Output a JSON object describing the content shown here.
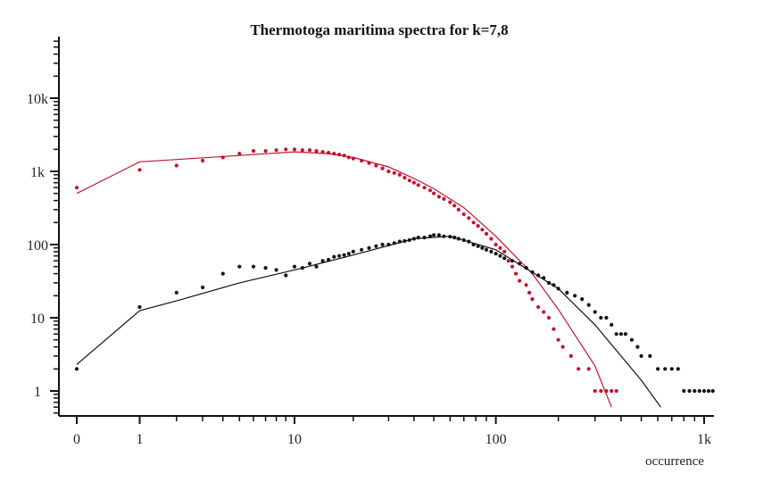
{
  "chart_data": {
    "type": "scatter",
    "title": "Thermotoga maritima spectra for k=7,8",
    "xlabel": "occurrence",
    "ylabel": "",
    "x_scale": "log(1+x)",
    "y_scale": "log",
    "xlim": [
      0,
      1200
    ],
    "ylim": [
      0.55,
      70000
    ],
    "x_tick_labels": [
      {
        "value": 0,
        "label": "0"
      },
      {
        "value": 1,
        "label": "1"
      },
      {
        "value": 10,
        "label": "10"
      },
      {
        "value": 100,
        "label": "100"
      },
      {
        "value": 1000,
        "label": "1k"
      }
    ],
    "y_tick_labels": [
      {
        "value": 1,
        "label": "1"
      },
      {
        "value": 10,
        "label": "10"
      },
      {
        "value": 100,
        "label": "100"
      },
      {
        "value": 1000,
        "label": "1k"
      },
      {
        "value": 10000,
        "label": "10k"
      }
    ],
    "grid": false,
    "legend": "none",
    "series": [
      {
        "color": "#c8102e",
        "points": [
          [
            0,
            600
          ],
          [
            1,
            1050
          ],
          [
            2,
            1200
          ],
          [
            3,
            1400
          ],
          [
            4,
            1550
          ],
          [
            5,
            1750
          ],
          [
            6,
            1900
          ],
          [
            7,
            1900
          ],
          [
            8,
            1950
          ],
          [
            9,
            2000
          ],
          [
            10,
            2000
          ],
          [
            11,
            1950
          ],
          [
            12,
            1950
          ],
          [
            13,
            1900
          ],
          [
            14,
            1850
          ],
          [
            15,
            1800
          ],
          [
            16,
            1750
          ],
          [
            17,
            1700
          ],
          [
            18,
            1650
          ],
          [
            19,
            1550
          ],
          [
            20,
            1500
          ],
          [
            22,
            1400
          ],
          [
            24,
            1300
          ],
          [
            26,
            1200
          ],
          [
            28,
            1100
          ],
          [
            30,
            1000
          ],
          [
            32,
            950
          ],
          [
            34,
            900
          ],
          [
            36,
            820
          ],
          [
            38,
            750
          ],
          [
            40,
            700
          ],
          [
            42,
            650
          ],
          [
            45,
            600
          ],
          [
            48,
            550
          ],
          [
            50,
            500
          ],
          [
            53,
            450
          ],
          [
            56,
            420
          ],
          [
            60,
            380
          ],
          [
            63,
            340
          ],
          [
            66,
            300
          ],
          [
            70,
            260
          ],
          [
            74,
            230
          ],
          [
            78,
            200
          ],
          [
            82,
            180
          ],
          [
            86,
            160
          ],
          [
            90,
            140
          ],
          [
            95,
            120
          ],
          [
            100,
            100
          ],
          [
            105,
            90
          ],
          [
            110,
            80
          ],
          [
            115,
            60
          ],
          [
            120,
            50
          ],
          [
            125,
            40
          ],
          [
            130,
            32
          ],
          [
            140,
            28
          ],
          [
            145,
            22
          ],
          [
            150,
            18
          ],
          [
            160,
            14
          ],
          [
            170,
            12
          ],
          [
            180,
            10
          ],
          [
            190,
            7
          ],
          [
            200,
            5
          ],
          [
            210,
            4
          ],
          [
            230,
            3
          ],
          [
            250,
            2
          ],
          [
            280,
            2
          ],
          [
            300,
            1
          ],
          [
            320,
            1
          ],
          [
            340,
            1
          ],
          [
            360,
            1
          ],
          [
            380,
            1
          ]
        ],
        "fit": [
          [
            0,
            500
          ],
          [
            1,
            1350
          ],
          [
            5,
            1650
          ],
          [
            10,
            1850
          ],
          [
            15,
            1750
          ],
          [
            20,
            1550
          ],
          [
            30,
            1150
          ],
          [
            40,
            800
          ],
          [
            50,
            580
          ],
          [
            70,
            320
          ],
          [
            100,
            130
          ],
          [
            150,
            40
          ],
          [
            200,
            13
          ],
          [
            300,
            2.2
          ],
          [
            360,
            0.6
          ]
        ]
      },
      {
        "color": "#111111",
        "points": [
          [
            0,
            2
          ],
          [
            1,
            14
          ],
          [
            2,
            22
          ],
          [
            3,
            26
          ],
          [
            4,
            40
          ],
          [
            5,
            50
          ],
          [
            6,
            50
          ],
          [
            7,
            48
          ],
          [
            8,
            45
          ],
          [
            9,
            38
          ],
          [
            10,
            50
          ],
          [
            11,
            48
          ],
          [
            12,
            55
          ],
          [
            13,
            50
          ],
          [
            14,
            60
          ],
          [
            15,
            62
          ],
          [
            16,
            68
          ],
          [
            17,
            70
          ],
          [
            18,
            72
          ],
          [
            19,
            75
          ],
          [
            20,
            80
          ],
          [
            22,
            85
          ],
          [
            24,
            90
          ],
          [
            26,
            95
          ],
          [
            28,
            100
          ],
          [
            30,
            100
          ],
          [
            32,
            105
          ],
          [
            34,
            110
          ],
          [
            36,
            112
          ],
          [
            38,
            115
          ],
          [
            40,
            120
          ],
          [
            42,
            125
          ],
          [
            45,
            125
          ],
          [
            48,
            130
          ],
          [
            50,
            135
          ],
          [
            53,
            135
          ],
          [
            56,
            130
          ],
          [
            60,
            128
          ],
          [
            63,
            125
          ],
          [
            66,
            120
          ],
          [
            70,
            115
          ],
          [
            74,
            110
          ],
          [
            78,
            100
          ],
          [
            82,
            95
          ],
          [
            86,
            90
          ],
          [
            90,
            85
          ],
          [
            95,
            80
          ],
          [
            100,
            75
          ],
          [
            105,
            70
          ],
          [
            110,
            65
          ],
          [
            120,
            60
          ],
          [
            130,
            55
          ],
          [
            140,
            48
          ],
          [
            150,
            42
          ],
          [
            160,
            38
          ],
          [
            170,
            35
          ],
          [
            180,
            30
          ],
          [
            190,
            28
          ],
          [
            200,
            25
          ],
          [
            220,
            22
          ],
          [
            240,
            20
          ],
          [
            260,
            18
          ],
          [
            280,
            15
          ],
          [
            300,
            12
          ],
          [
            320,
            10
          ],
          [
            340,
            10
          ],
          [
            360,
            8
          ],
          [
            380,
            6
          ],
          [
            400,
            6
          ],
          [
            420,
            6
          ],
          [
            450,
            5
          ],
          [
            480,
            4
          ],
          [
            500,
            3
          ],
          [
            550,
            3
          ],
          [
            600,
            2
          ],
          [
            650,
            2
          ],
          [
            700,
            2
          ],
          [
            750,
            2
          ],
          [
            800,
            1
          ],
          [
            850,
            1
          ],
          [
            900,
            1
          ],
          [
            950,
            1
          ],
          [
            1000,
            1
          ],
          [
            1050,
            1
          ],
          [
            1100,
            1
          ]
        ],
        "fit": [
          [
            0,
            2.3
          ],
          [
            1,
            12.5
          ],
          [
            2,
            17
          ],
          [
            5,
            30
          ],
          [
            10,
            45
          ],
          [
            20,
            72
          ],
          [
            40,
            120
          ],
          [
            60,
            130
          ],
          [
            100,
            85
          ],
          [
            200,
            25
          ],
          [
            300,
            8
          ],
          [
            500,
            1.4
          ],
          [
            620,
            0.6
          ]
        ]
      }
    ]
  }
}
